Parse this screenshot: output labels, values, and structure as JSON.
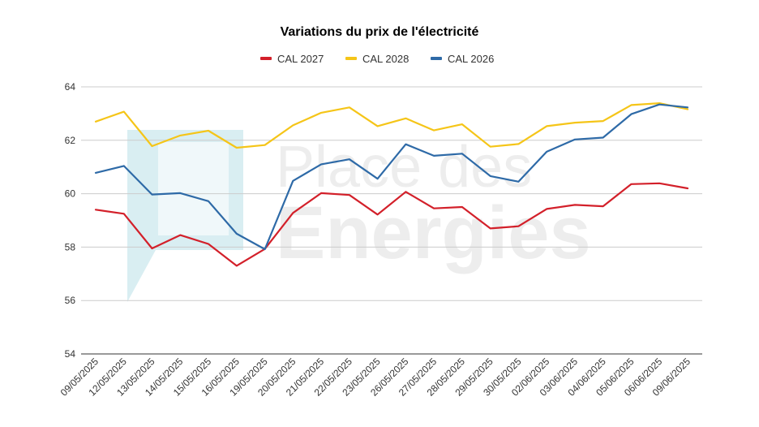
{
  "watermark": {
    "line1": "Place des",
    "line2": "Energies",
    "color": "#d9eef2"
  },
  "chart_data": {
    "type": "line",
    "title": "Variations du prix de l'électricité",
    "xlabel": "",
    "ylabel": "",
    "categories": [
      "09/05/2025",
      "12/05/2025",
      "13/05/2025",
      "14/05/2025",
      "15/05/2025",
      "16/05/2025",
      "19/05/2025",
      "20/05/2025",
      "21/05/2025",
      "22/05/2025",
      "23/05/2025",
      "26/05/2025",
      "27/05/2025",
      "28/05/2025",
      "29/05/2025",
      "30/05/2025",
      "02/06/2025",
      "03/06/2025",
      "04/06/2025",
      "05/06/2025",
      "06/06/2025",
      "09/06/2025"
    ],
    "ylim": [
      54,
      64
    ],
    "yticks": [
      "54",
      "56",
      "58",
      "60",
      "62",
      "64"
    ],
    "grid": "horizontal",
    "legend_position": "top",
    "series": [
      {
        "name": "CAL 2027",
        "color": "#d3202a",
        "values": [
          59.4,
          59.25,
          57.95,
          58.45,
          58.12,
          57.3,
          57.93,
          59.28,
          60.02,
          59.95,
          59.22,
          60.07,
          59.45,
          59.5,
          58.7,
          58.78,
          59.43,
          59.58,
          59.53,
          60.36,
          60.39,
          60.2
        ]
      },
      {
        "name": "CAL 2028",
        "color": "#f5c518",
        "values": [
          62.7,
          63.07,
          61.78,
          62.18,
          62.36,
          61.72,
          61.82,
          62.56,
          63.03,
          63.23,
          62.53,
          62.82,
          62.37,
          62.6,
          61.76,
          61.86,
          62.53,
          62.66,
          62.72,
          63.32,
          63.39,
          63.16
        ]
      },
      {
        "name": "CAL 2026",
        "color": "#2e6aa7",
        "values": [
          60.78,
          61.04,
          59.97,
          60.02,
          59.72,
          58.5,
          57.92,
          60.48,
          61.1,
          61.29,
          60.56,
          61.85,
          61.42,
          61.5,
          60.66,
          60.45,
          61.57,
          62.03,
          62.1,
          62.98,
          63.34,
          63.23
        ]
      }
    ]
  }
}
